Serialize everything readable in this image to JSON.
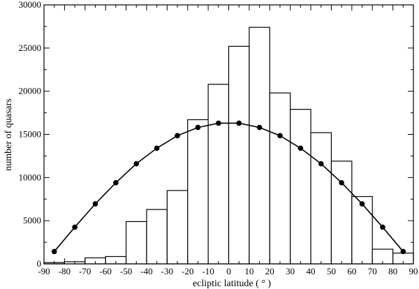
{
  "chart_data": {
    "type": "bar",
    "title": "",
    "xlabel": "ecliptic latitude ( ° )",
    "ylabel": "number of quasars",
    "xlim": [
      -90,
      90
    ],
    "ylim": [
      0,
      30000
    ],
    "x_ticks": [
      -90,
      -80,
      -70,
      -60,
      -50,
      -40,
      -30,
      -20,
      -10,
      0,
      10,
      20,
      30,
      40,
      50,
      60,
      70,
      80,
      90
    ],
    "y_ticks": [
      0,
      5000,
      10000,
      15000,
      20000,
      25000,
      30000
    ],
    "grid": false,
    "legend": "none",
    "series": [
      {
        "type": "histogram",
        "bin_edges": [
          -90,
          -80,
          -70,
          -60,
          -50,
          -40,
          -30,
          -20,
          -10,
          0,
          10,
          20,
          30,
          40,
          50,
          60,
          70,
          80,
          90
        ],
        "values": [
          150,
          250,
          700,
          850,
          4900,
          6300,
          8500,
          16700,
          20800,
          25200,
          27400,
          19800,
          17900,
          15200,
          11900,
          7800,
          1700,
          1250
        ],
        "color": "#000000"
      },
      {
        "type": "line",
        "markers": true,
        "x": [
          -85,
          -75,
          -65,
          -55,
          -45,
          -35,
          -25,
          -15,
          -5,
          5,
          15,
          25,
          35,
          45,
          55,
          65,
          75,
          85
        ],
        "values": [
          1430,
          4250,
          6950,
          9400,
          11600,
          13400,
          14850,
          15800,
          16300,
          16300,
          15800,
          14850,
          13400,
          11600,
          9400,
          6950,
          4250,
          1430
        ],
        "color": "#000000"
      }
    ]
  }
}
